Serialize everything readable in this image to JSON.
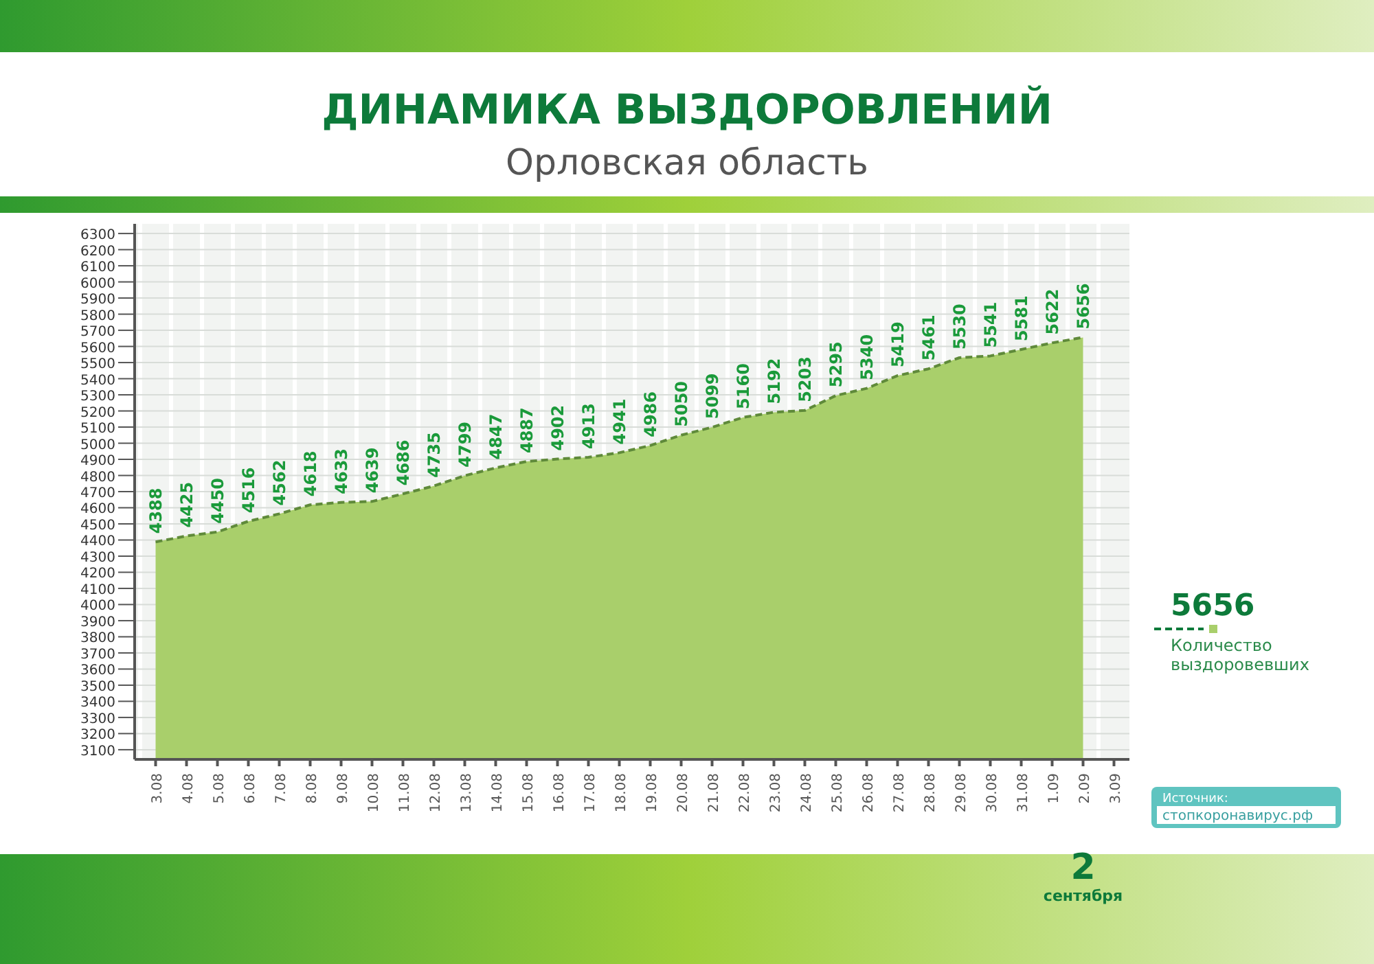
{
  "chart_data": {
    "type": "area",
    "title": "ДИНАМИКА ВЫЗДОРОВЛЕНИЙ",
    "subtitle": "Орловская область",
    "categories": [
      "3.08",
      "4.08",
      "5.08",
      "6.08",
      "7.08",
      "8.08",
      "9.08",
      "10.08",
      "11.08",
      "12.08",
      "13.08",
      "14.08",
      "15.08",
      "16.08",
      "17.08",
      "18.08",
      "19.08",
      "20.08",
      "21.08",
      "22.08",
      "23.08",
      "24.08",
      "25.08",
      "26.08",
      "27.08",
      "28.08",
      "29.08",
      "30.08",
      "31.08",
      "1.09",
      "2.09",
      "3.09"
    ],
    "series": [
      {
        "name": "Количество выздоровевших",
        "color": "#a9cf6b",
        "values": [
          4388,
          4425,
          4450,
          4516,
          4562,
          4618,
          4633,
          4639,
          4686,
          4735,
          4799,
          4847,
          4887,
          4902,
          4913,
          4941,
          4986,
          5050,
          5099,
          5160,
          5192,
          5203,
          5295,
          5340,
          5419,
          5461,
          5530,
          5541,
          5581,
          5622,
          5656,
          null
        ]
      }
    ],
    "ylim": [
      3040,
      6360
    ],
    "yticks": [
      3100,
      3200,
      3300,
      3400,
      3500,
      3600,
      3700,
      3800,
      3900,
      4000,
      4100,
      4200,
      4300,
      4400,
      4500,
      4600,
      4700,
      4800,
      4900,
      5000,
      5100,
      5200,
      5300,
      5400,
      5500,
      5600,
      5700,
      5800,
      5900,
      6000,
      6100,
      6200,
      6300
    ],
    "grid": true,
    "data_labels": true,
    "line_style": "dashed",
    "legend": "right",
    "annotations": [
      "5656",
      "2 сентября",
      "Источник:",
      "стопкоронавирус.рф"
    ]
  }
}
